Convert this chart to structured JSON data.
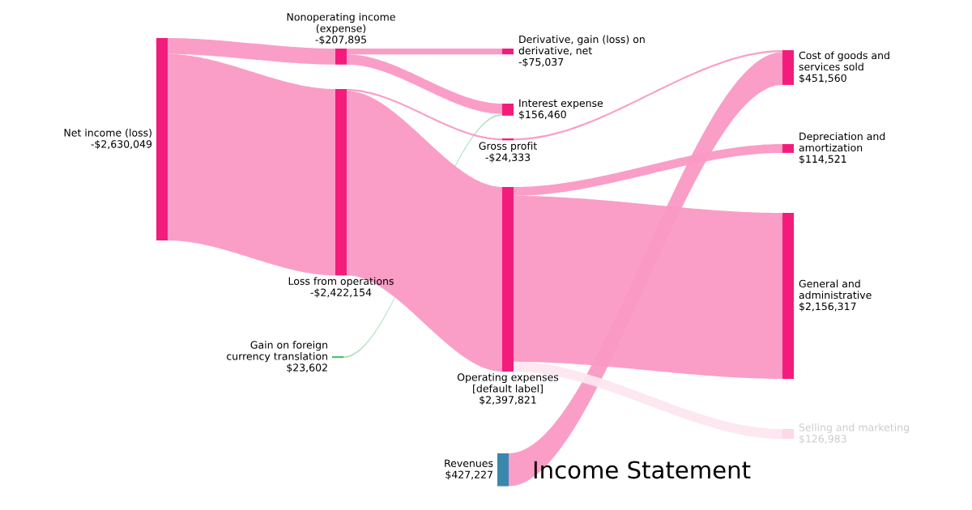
{
  "chart_data": {
    "type": "other",
    "title": "Income Statement",
    "categories": [
      "Net income (loss)",
      "Nonoperating income (expense)",
      "Loss from operations",
      "Gain on foreign currency translation",
      "Derivative, gain (loss) on derivative, net",
      "Interest expense",
      "Gross profit",
      "Operating expenses [default label]",
      "Revenues",
      "Cost of goods and services sold",
      "Depreciation and amortization",
      "General and administrative",
      "Selling and marketing"
    ],
    "values": [
      -2630049,
      -207895,
      -2422154,
      23602,
      -75037,
      156460,
      -24333,
      2397821,
      427227,
      451560,
      114521,
      2156317,
      126983
    ],
    "value_labels": [
      "-$2,630,049",
      "-$207,895",
      "-$2,422,154",
      "$23,602",
      "-$75,037",
      "$156,460",
      "-$24,333",
      "$2,397,821",
      "$427,227",
      "$451,560",
      "$114,521",
      "$2,156,317",
      "$126,983"
    ],
    "colors": [
      "#f31c7c",
      "#f31c7c",
      "#f31c7c",
      "#5cb87a",
      "#f31c7c",
      "#f31c7c",
      "#f31c7c",
      "#f31c7c",
      "#3a87ad",
      "#f31c7c",
      "#f31c7c",
      "#f31c7c",
      "#fcd9e6"
    ]
  }
}
